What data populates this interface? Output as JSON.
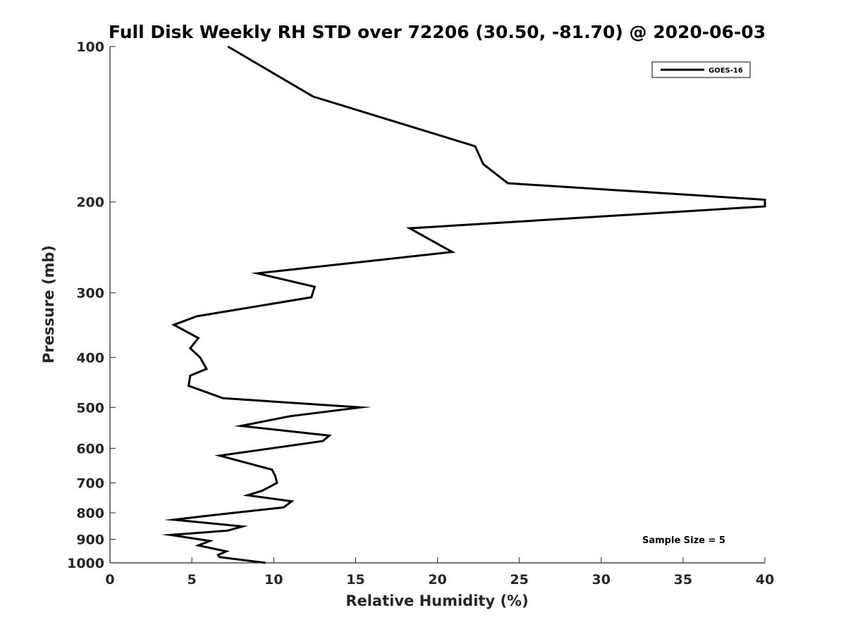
{
  "chart_data": {
    "type": "line",
    "title": "Full Disk Weekly RH STD over 72206 (30.50, -81.70) @ 2020-06-03",
    "xlabel": "Relative Humidity (%)",
    "ylabel": "Pressure (mb)",
    "xlim": [
      0,
      40
    ],
    "ylim": [
      100,
      1000
    ],
    "y_scale": "log",
    "y_reversed": true,
    "x_ticks": [
      "0",
      "5",
      "10",
      "15",
      "20",
      "25",
      "30",
      "35",
      "40"
    ],
    "y_ticks": [
      "100",
      "200",
      "300",
      "400",
      "500",
      "600",
      "700",
      "800",
      "900",
      "1000"
    ],
    "grid": false,
    "legend_position": "top-right",
    "annotation": "Sample Size = 5",
    "series": [
      {
        "name": "GOES-16",
        "color": "#000000",
        "points": [
          [
            7.2,
            100
          ],
          [
            12.4,
            125
          ],
          [
            22.3,
            156
          ],
          [
            22.8,
            169
          ],
          [
            24.3,
            184
          ],
          [
            40.0,
            198
          ],
          [
            40.0,
            204
          ],
          [
            18.3,
            225
          ],
          [
            20.9,
            250
          ],
          [
            9.0,
            275
          ],
          [
            12.5,
            292
          ],
          [
            12.3,
            306
          ],
          [
            5.3,
            333
          ],
          [
            3.9,
            346
          ],
          [
            5.4,
            367
          ],
          [
            4.9,
            384
          ],
          [
            5.5,
            400
          ],
          [
            5.9,
            421
          ],
          [
            4.9,
            434
          ],
          [
            4.8,
            454
          ],
          [
            6.9,
            480
          ],
          [
            15.3,
            500
          ],
          [
            11.0,
            520
          ],
          [
            8.0,
            543
          ],
          [
            13.4,
            567
          ],
          [
            13.0,
            581
          ],
          [
            6.7,
            620
          ],
          [
            9.9,
            660
          ],
          [
            10.1,
            680
          ],
          [
            10.2,
            700
          ],
          [
            9.3,
            725
          ],
          [
            8.4,
            740
          ],
          [
            11.1,
            760
          ],
          [
            10.6,
            781
          ],
          [
            6.2,
            809
          ],
          [
            3.9,
            825
          ],
          [
            8.1,
            850
          ],
          [
            7.2,
            866
          ],
          [
            3.7,
            883
          ],
          [
            6.1,
            907
          ],
          [
            5.4,
            925
          ],
          [
            7.1,
            950
          ],
          [
            6.6,
            965
          ],
          [
            6.7,
            975
          ],
          [
            9.5,
            1000
          ]
        ]
      }
    ]
  }
}
